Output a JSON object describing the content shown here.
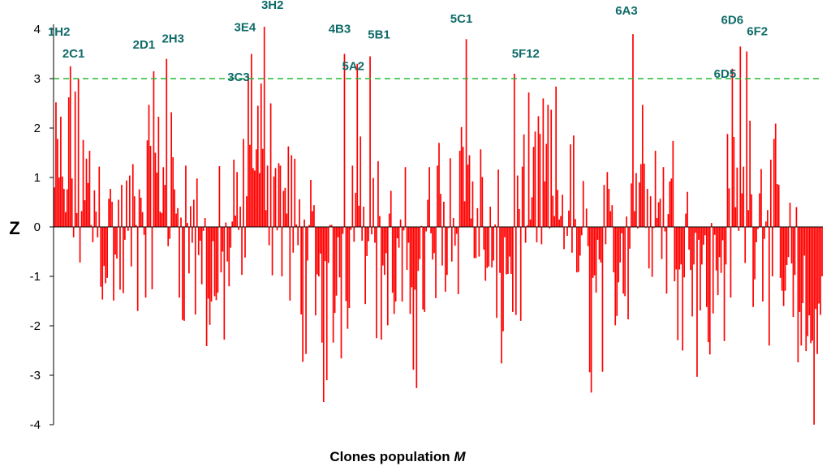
{
  "chart_data": {
    "type": "bar",
    "title": "",
    "xlabel": "Clones population",
    "xlabel_var": "M",
    "ylabel": "Z",
    "ylim": [
      -4,
      4
    ],
    "yticks": [
      -4,
      -3,
      -2,
      -1,
      0,
      1,
      2,
      3,
      4
    ],
    "threshold": {
      "value": 3,
      "color": "#22bb33",
      "style": "dashed"
    },
    "bar_color": "#ff0000",
    "annotation_color": "#0f6b69",
    "n_bars": 480,
    "annotations": [
      {
        "label": "1H2",
        "index": 10,
        "value": 3.25
      },
      {
        "label": "2C1",
        "index": 15,
        "value": 3.0
      },
      {
        "label": "2D1",
        "index": 62,
        "value": 3.15
      },
      {
        "label": "2H3",
        "index": 70,
        "value": 3.4
      },
      {
        "label": "3C3",
        "index": 121,
        "value": 3.05
      },
      {
        "label": "3E4",
        "index": 123,
        "value": 3.5
      },
      {
        "label": "3H2",
        "index": 131,
        "value": 4.05
      },
      {
        "label": "4B3",
        "index": 181,
        "value": 3.5
      },
      {
        "label": "5A2",
        "index": 189,
        "value": 3.3
      },
      {
        "label": "5B1",
        "index": 197,
        "value": 3.45
      },
      {
        "label": "5C1",
        "index": 257,
        "value": 3.8
      },
      {
        "label": "5F12",
        "index": 287,
        "value": 3.1
      },
      {
        "label": "6A3",
        "index": 361,
        "value": 3.9
      },
      {
        "label": "6D5",
        "index": 423,
        "value": 3.2
      },
      {
        "label": "6D6",
        "index": 428,
        "value": 3.65
      },
      {
        "label": "6F2",
        "index": 432,
        "value": 3.55
      }
    ],
    "values": []
  }
}
